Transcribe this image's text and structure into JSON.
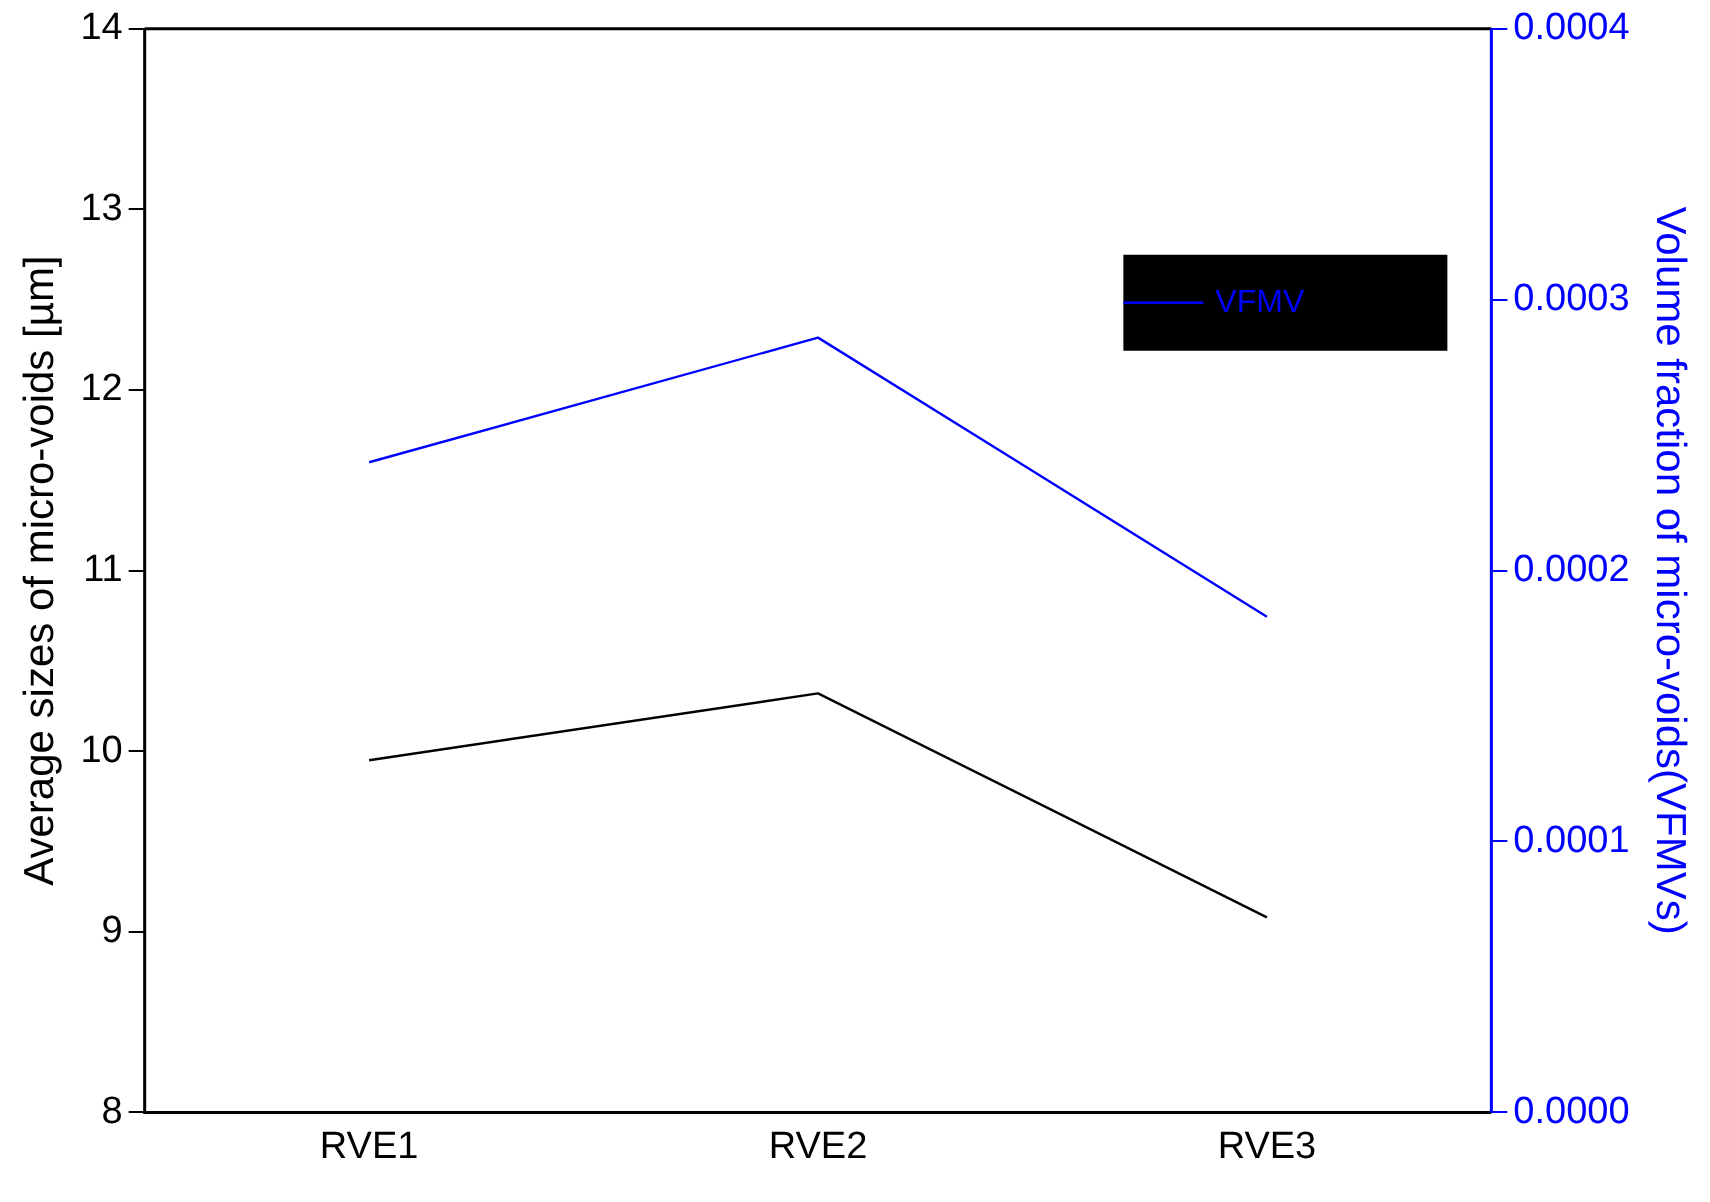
{
  "chart_data": {
    "type": "line",
    "categories": [
      "RVE1",
      "RVE2",
      "RVE3"
    ],
    "ylabel": "Average sizes of micro-voids [µm]",
    "y2label": "Volume fraction of micro-voids(VFMVs)",
    "ylim": [
      8,
      14
    ],
    "yticks": [
      8,
      9,
      10,
      11,
      12,
      13,
      14
    ],
    "y2lim": [
      0,
      0.0004
    ],
    "y2ticks": [
      {
        "value": 0,
        "label": "0.0000"
      },
      {
        "value": 0.0001,
        "label": "0.0001"
      },
      {
        "value": 0.0002,
        "label": "0.0002"
      },
      {
        "value": 0.0003,
        "label": "0.0003"
      },
      {
        "value": 0.0004,
        "label": "0.0004"
      }
    ],
    "series": [
      {
        "color": "#000000",
        "values": [
          9.95,
          10.32,
          9.08
        ]
      },
      {
        "name": "VFMV",
        "color": "#0000ff",
        "axis": "y2",
        "values": [
          0.00024,
          0.000286,
          0.000183
        ]
      }
    ],
    "legend": "top right",
    "grid": false,
    "marker": "none",
    "line_style": "solid"
  }
}
